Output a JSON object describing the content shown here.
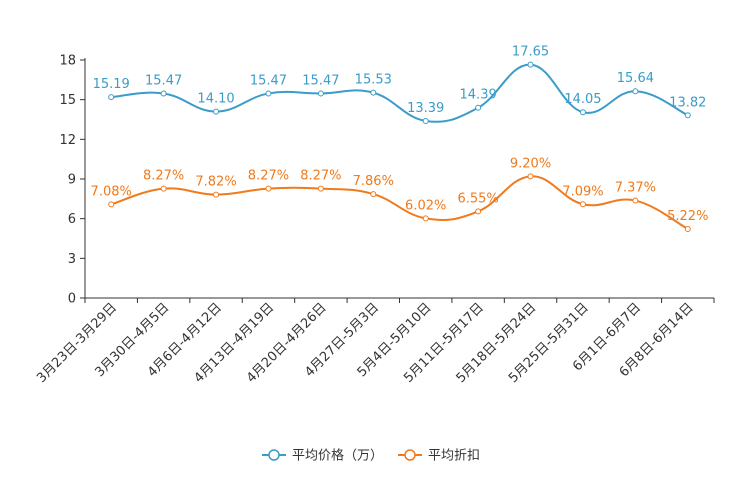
{
  "chart_data": {
    "type": "line",
    "title": "",
    "xlabel": "",
    "ylabel": "",
    "ylim": [
      0,
      18
    ],
    "yticks": [
      "0",
      "3",
      "6",
      "9",
      "12",
      "15",
      "18"
    ],
    "categories": [
      "3月23日-3月29日",
      "3月30日-4月5日",
      "4月6日-4月12日",
      "4月13日-4月19日",
      "4月20日-4月26日",
      "4月27日-5月3日",
      "5月4日-5月10日",
      "5月11日-5月17日",
      "5月18日-5月24日",
      "5月25日-5月31日",
      "6月1日-6月7日",
      "6月8日-6月14日"
    ],
    "legend_position": "bottom",
    "series": [
      {
        "name": "平均价格（万）",
        "color": "#3a9cc8",
        "values": [
          15.19,
          15.47,
          14.1,
          15.47,
          15.47,
          15.53,
          13.39,
          14.39,
          17.65,
          14.05,
          15.64,
          13.82
        ],
        "labels": [
          "15.19",
          "15.47",
          "14.10",
          "15.47",
          "15.47",
          "15.53",
          "13.39",
          "14.39",
          "17.65",
          "14.05",
          "15.64",
          "13.82"
        ]
      },
      {
        "name": "平均折扣",
        "color": "#f07a1c",
        "values": [
          7.08,
          8.27,
          7.82,
          8.27,
          8.27,
          7.86,
          6.02,
          6.55,
          9.2,
          7.09,
          7.37,
          5.22
        ],
        "labels": [
          "7.08%",
          "8.27%",
          "7.82%",
          "8.27%",
          "8.27%",
          "7.86%",
          "6.02%",
          "6.55%",
          "9.20%",
          "7.09%",
          "7.37%",
          "5.22%"
        ]
      }
    ]
  }
}
